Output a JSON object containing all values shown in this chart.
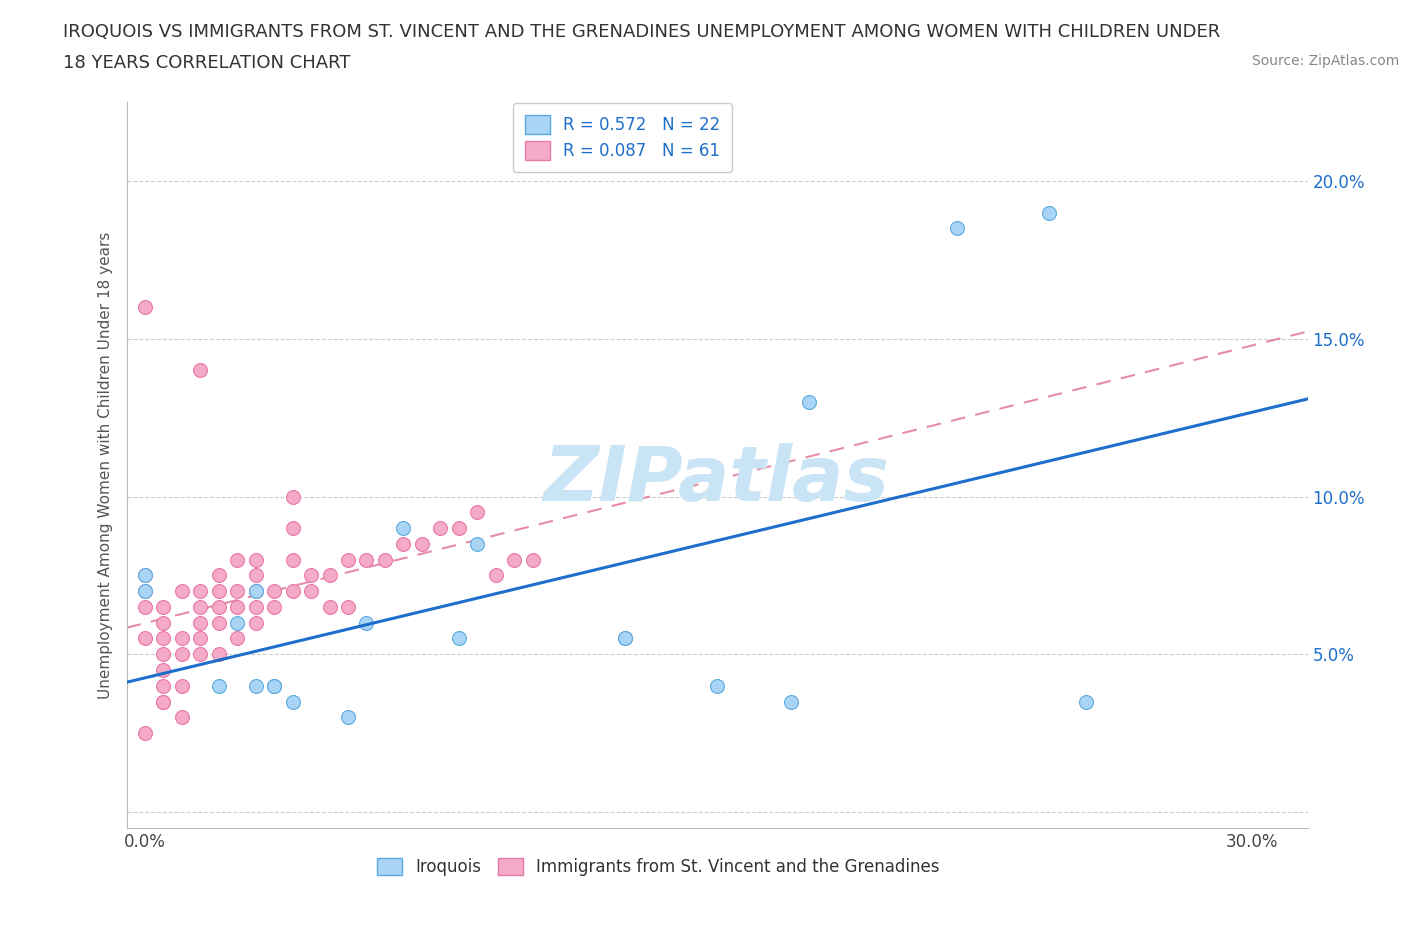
{
  "title_line1": "IROQUOIS VS IMMIGRANTS FROM ST. VINCENT AND THE GRENADINES UNEMPLOYMENT AMONG WOMEN WITH CHILDREN UNDER",
  "title_line2": "18 YEARS CORRELATION CHART",
  "source_text": "Source: ZipAtlas.com",
  "ylabel": "Unemployment Among Women with Children Under 18 years",
  "watermark": "ZIPatlas",
  "legend_entries": [
    {
      "label": "Iroquois",
      "R": 0.572,
      "N": 22,
      "color": "#aad4f5",
      "line_color": "#1e6fcc"
    },
    {
      "label": "Immigrants from St. Vincent and the Grenadines",
      "R": 0.087,
      "N": 61,
      "color": "#f5aac8",
      "line_color": "#e07090"
    }
  ],
  "x_ticks": [
    0.0,
    0.05,
    0.1,
    0.15,
    0.2,
    0.25,
    0.3
  ],
  "x_tick_labels": [
    "0.0%",
    "",
    "",
    "",
    "",
    "",
    "30.0%"
  ],
  "y_ticks": [
    0.0,
    0.05,
    0.1,
    0.15,
    0.2
  ],
  "y_tick_labels": [
    "",
    "5.0%",
    "10.0%",
    "15.0%",
    "20.0%"
  ],
  "xlim": [
    -0.005,
    0.315
  ],
  "ylim": [
    -0.005,
    0.225
  ],
  "iroquois_x": [
    0.0,
    0.0,
    0.02,
    0.025,
    0.03,
    0.03,
    0.035,
    0.035,
    0.04,
    0.055,
    0.06,
    0.07,
    0.085,
    0.09,
    0.13,
    0.13,
    0.155,
    0.175,
    0.18,
    0.22,
    0.245,
    0.255
  ],
  "iroquois_y": [
    0.07,
    0.075,
    0.04,
    0.06,
    0.07,
    0.04,
    0.04,
    0.04,
    0.035,
    0.03,
    0.06,
    0.09,
    0.055,
    0.085,
    0.055,
    0.055,
    0.04,
    0.035,
    0.13,
    0.185,
    0.19,
    0.035
  ],
  "svg_x": [
    0.0,
    0.0,
    0.0,
    0.0,
    0.0,
    0.005,
    0.005,
    0.005,
    0.005,
    0.005,
    0.005,
    0.005,
    0.01,
    0.01,
    0.01,
    0.01,
    0.015,
    0.015,
    0.015,
    0.015,
    0.015,
    0.015,
    0.02,
    0.02,
    0.02,
    0.02,
    0.02,
    0.025,
    0.025,
    0.025,
    0.025,
    0.03,
    0.03,
    0.03,
    0.03,
    0.03,
    0.035,
    0.035,
    0.04,
    0.04,
    0.04,
    0.04,
    0.045,
    0.045,
    0.05,
    0.05,
    0.055,
    0.055,
    0.06,
    0.065,
    0.07,
    0.075,
    0.08,
    0.085,
    0.09,
    0.095,
    0.1,
    0.105,
    0.0,
    0.005,
    0.01
  ],
  "svg_y": [
    0.055,
    0.065,
    0.07,
    0.075,
    0.16,
    0.035,
    0.04,
    0.045,
    0.05,
    0.055,
    0.06,
    0.065,
    0.04,
    0.05,
    0.055,
    0.07,
    0.05,
    0.055,
    0.06,
    0.065,
    0.07,
    0.14,
    0.05,
    0.06,
    0.065,
    0.07,
    0.075,
    0.055,
    0.065,
    0.07,
    0.08,
    0.06,
    0.065,
    0.07,
    0.075,
    0.08,
    0.065,
    0.07,
    0.07,
    0.08,
    0.09,
    0.1,
    0.07,
    0.075,
    0.065,
    0.075,
    0.065,
    0.08,
    0.08,
    0.08,
    0.085,
    0.085,
    0.09,
    0.09,
    0.095,
    0.075,
    0.08,
    0.08,
    0.025,
    0.035,
    0.03
  ],
  "iroquois_scatter_color": "#aad4f5",
  "iroquois_edge_color": "#5aaae0",
  "svg_scatter_color": "#f5aac8",
  "svg_edge_color": "#e878a8",
  "iroquois_line_color": "#1e6fcc",
  "svg_line_color": "#e07090",
  "title_fontsize": 13,
  "source_fontsize": 10,
  "axis_label_fontsize": 11,
  "tick_fontsize": 12,
  "legend_fontsize": 12,
  "scatter_size": 100,
  "background_color": "#ffffff",
  "grid_color": "#cccccc",
  "watermark_color": "#c8e4f5",
  "watermark_fontsize": 55
}
